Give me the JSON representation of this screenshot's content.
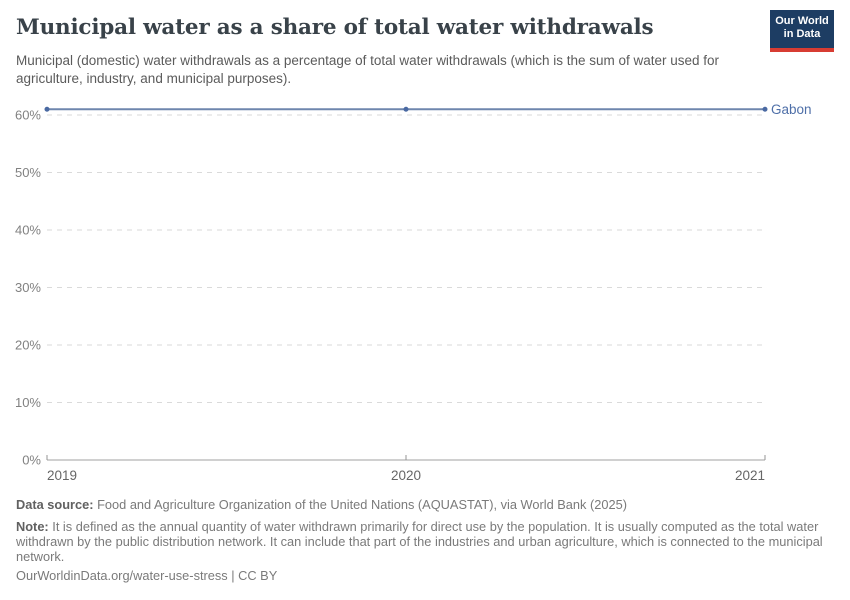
{
  "header": {
    "title": "Municipal water as a share of total water withdrawals",
    "subtitle": "Municipal (domestic) water withdrawals as a percentage of total water withdrawals (which is the sum of water used for agriculture, industry, and municipal purposes).",
    "logo": {
      "line1": "Our World",
      "line2": "in Data"
    }
  },
  "chart_data": {
    "type": "line",
    "title": "Municipal water as a share of total water withdrawals",
    "x": [
      2019,
      2020,
      2021
    ],
    "xticks": [
      "2019",
      "2020",
      "2021"
    ],
    "yticks": [
      "0%",
      "10%",
      "20%",
      "30%",
      "40%",
      "50%",
      "60%"
    ],
    "ylim": [
      0,
      60
    ],
    "xlabel": "",
    "ylabel": "",
    "grid": "horizontal-dashed",
    "legend_position": "end-of-line-label",
    "series": [
      {
        "name": "Gabon",
        "values": [
          61,
          61,
          61
        ]
      }
    ]
  },
  "footer": {
    "data_source_label": "Data source:",
    "data_source": "Food and Agriculture Organization of the United Nations (AQUASTAT), via World Bank (2025)",
    "note_label": "Note:",
    "note": "It is defined as the annual quantity of water withdrawn primarily for direct use by the population. It is usually computed as the total water withdrawn by the public distribution network. It can include that part of the industries and urban agriculture, which is connected to the municipal network.",
    "url": "OurWorldinData.org/water-use-stress | CC BY"
  },
  "colors": {
    "accent_navy": "#1d3d63",
    "accent_red": "#d73c32",
    "line": "#6e86ad",
    "marker": "#4a69a2",
    "series_label": "#4e6fa8",
    "grid": "#dadada",
    "axis": "#c0c0c0",
    "tick": "#949494",
    "ytick_text": "#818181",
    "xtick_text": "#666666"
  }
}
